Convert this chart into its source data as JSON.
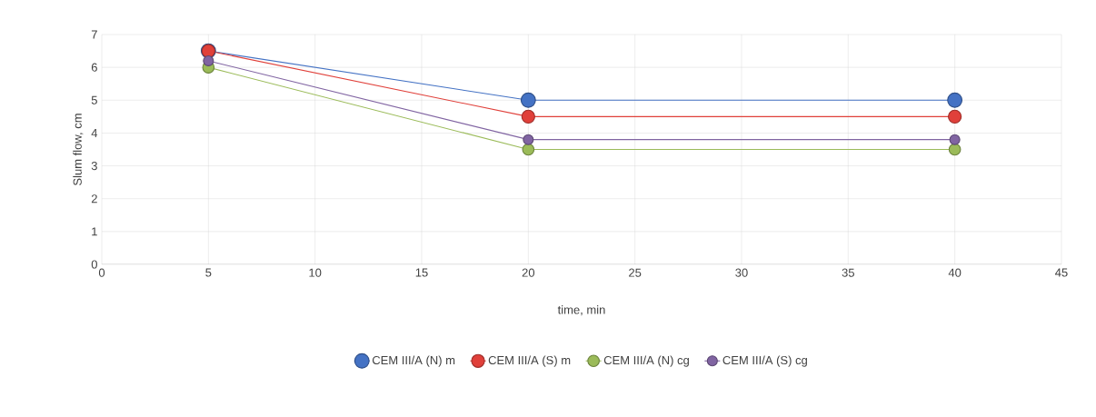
{
  "chart_data": {
    "type": "line",
    "xlabel": "time, min",
    "ylabel": "Slum flow, cm",
    "x": [
      5,
      20,
      40
    ],
    "series": [
      {
        "name": "CEM III/A (N) m",
        "color": "#4472c4",
        "values": [
          6.5,
          5,
          5
        ]
      },
      {
        "name": "CEM III/A (S) m",
        "color": "#e0403a",
        "values": [
          6.5,
          4.5,
          4.5
        ]
      },
      {
        "name": "CEM III/A (N) cg",
        "color": "#9bbb59",
        "values": [
          6.0,
          3.5,
          3.5
        ]
      },
      {
        "name": "CEM III/A (S) cg",
        "color": "#8064a2",
        "values": [
          6.2,
          3.8,
          3.8
        ]
      }
    ],
    "xlim": [
      0,
      45
    ],
    "ylim": [
      0,
      7
    ],
    "xticks": [
      0,
      5,
      10,
      15,
      20,
      25,
      30,
      35,
      40,
      45
    ],
    "yticks": [
      0,
      1,
      2,
      3,
      4,
      5,
      6,
      7
    ],
    "grid": true,
    "legend": "bottom",
    "marker": "circle",
    "line_style": "solid"
  }
}
